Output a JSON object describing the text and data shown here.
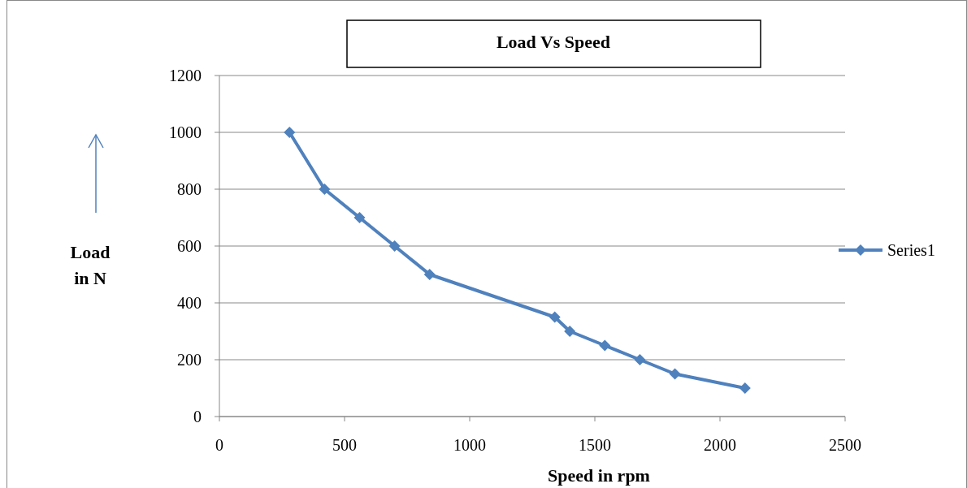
{
  "chart_data": {
    "type": "line",
    "title": "Load Vs Speed",
    "xlabel": "Speed in rpm",
    "ylabel": "Load in N",
    "x": [
      280,
      420,
      560,
      700,
      840,
      1340,
      1400,
      1540,
      1680,
      1820,
      2100
    ],
    "series": [
      {
        "name": "Series1",
        "color": "#4f81bd",
        "values": [
          1000,
          800,
          700,
          600,
          500,
          350,
          300,
          250,
          200,
          150,
          100
        ]
      }
    ],
    "xlim": [
      0,
      2500
    ],
    "xticks": [
      0,
      500,
      1000,
      1500,
      2000,
      2500
    ],
    "ylim": [
      0,
      1200
    ],
    "yticks": [
      0,
      200,
      400,
      600,
      800,
      1000,
      1200
    ],
    "grid": "y",
    "legend": "right",
    "marker": "diamond",
    "line_style": "solid"
  }
}
